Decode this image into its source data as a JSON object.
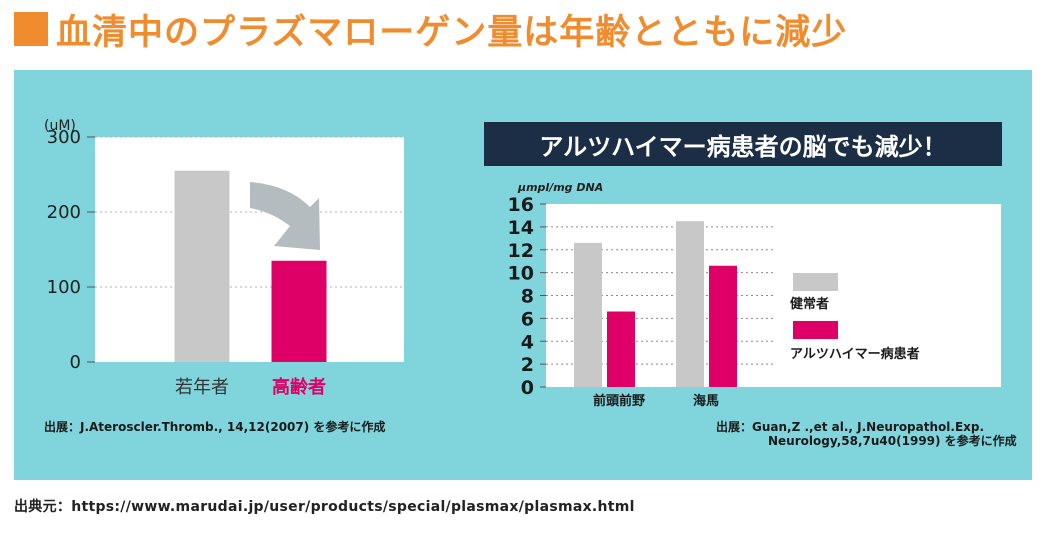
{
  "title": "■血清中のプラズマローゲン量は年齢とともに減少",
  "title_text": "血清中のプラズマローゲン量は年齢とともに減少",
  "colors": {
    "accent": "#f08c2e",
    "panel": "#80d5dc",
    "banner": "#1b2e46",
    "gray": "#c8c8c8",
    "magenta": "#de0066",
    "arrow": "#b4bcbf"
  },
  "banner": "アルツハイマー病患者の脳でも減少！",
  "left_source": "出展：J.Ateroscler.Thromb., 14,12(2007) を参考に作成",
  "right_source_line1": "出展：Guan,Z .,et al., J.Neuropathol.Exp.",
  "right_source_line2": "Neurology,58,7u40(1999) を参考に作成",
  "footer": "出典元：https://www.marudai.jp/user/products/special/plasmax/plasmax.html",
  "chart_data": [
    {
      "type": "bar",
      "title": "",
      "ylabel": "(uM)",
      "ylim": [
        0,
        300
      ],
      "yticks": [
        0,
        100,
        200,
        300
      ],
      "categories": [
        "若年者",
        "高齢者"
      ],
      "values": [
        255,
        135
      ],
      "bar_colors": [
        "#c8c8c8",
        "#de0066"
      ],
      "label_colors": [
        "#333333",
        "#de0066"
      ],
      "annotation": "downward arrow from first bar to second bar"
    },
    {
      "type": "bar",
      "title": "アルツハイマー病患者の脳でも減少！",
      "ylabel": "μmpl/mg DNA",
      "ylim": [
        0,
        16
      ],
      "yticks": [
        0,
        2,
        4,
        6,
        8,
        10,
        12,
        14,
        16
      ],
      "categories": [
        "前頭前野",
        "海馬"
      ],
      "series": [
        {
          "name": "健常者",
          "color": "#c8c8c8",
          "values": [
            12.6,
            14.5
          ]
        },
        {
          "name": "アルツハイマー病患者",
          "color": "#de0066",
          "values": [
            6.6,
            10.6
          ]
        }
      ],
      "legend": "right"
    }
  ]
}
